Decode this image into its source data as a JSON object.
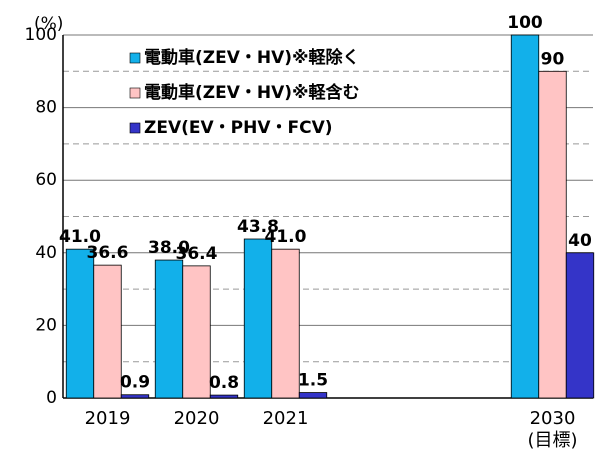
{
  "chart_data": {
    "type": "bar",
    "ylabel": "(%)",
    "categories": [
      "2019",
      "2020",
      "2021",
      null,
      null,
      "2030\n(目標)"
    ],
    "series": [
      {
        "name": "電動車(ZEV・HV)※軽除く",
        "color": "#12b0ea",
        "values": [
          41.0,
          38.0,
          43.8,
          null,
          null,
          100
        ],
        "value_labels": [
          "41.0",
          "38.0",
          "43.8",
          null,
          null,
          "100"
        ]
      },
      {
        "name": "電動車(ZEV・HV)※軽含む",
        "color": "#ffc4c4",
        "values": [
          36.6,
          36.4,
          41.0,
          null,
          null,
          90
        ],
        "value_labels": [
          "36.6",
          "36.4",
          "41.0",
          null,
          null,
          "90"
        ]
      },
      {
        "name": "ZEV(EV・PHV・FCV)",
        "color": "#3434c8",
        "values": [
          0.9,
          0.8,
          1.5,
          null,
          null,
          40
        ],
        "value_labels": [
          "0.9",
          "0.8",
          "1.5",
          null,
          null,
          "40"
        ]
      }
    ],
    "ylim": [
      0,
      100
    ],
    "yticks": [
      0,
      20,
      40,
      60,
      80,
      100
    ],
    "minor_grid": [
      10,
      30,
      50,
      70,
      90
    ],
    "grid": true,
    "legend": "upper left"
  }
}
